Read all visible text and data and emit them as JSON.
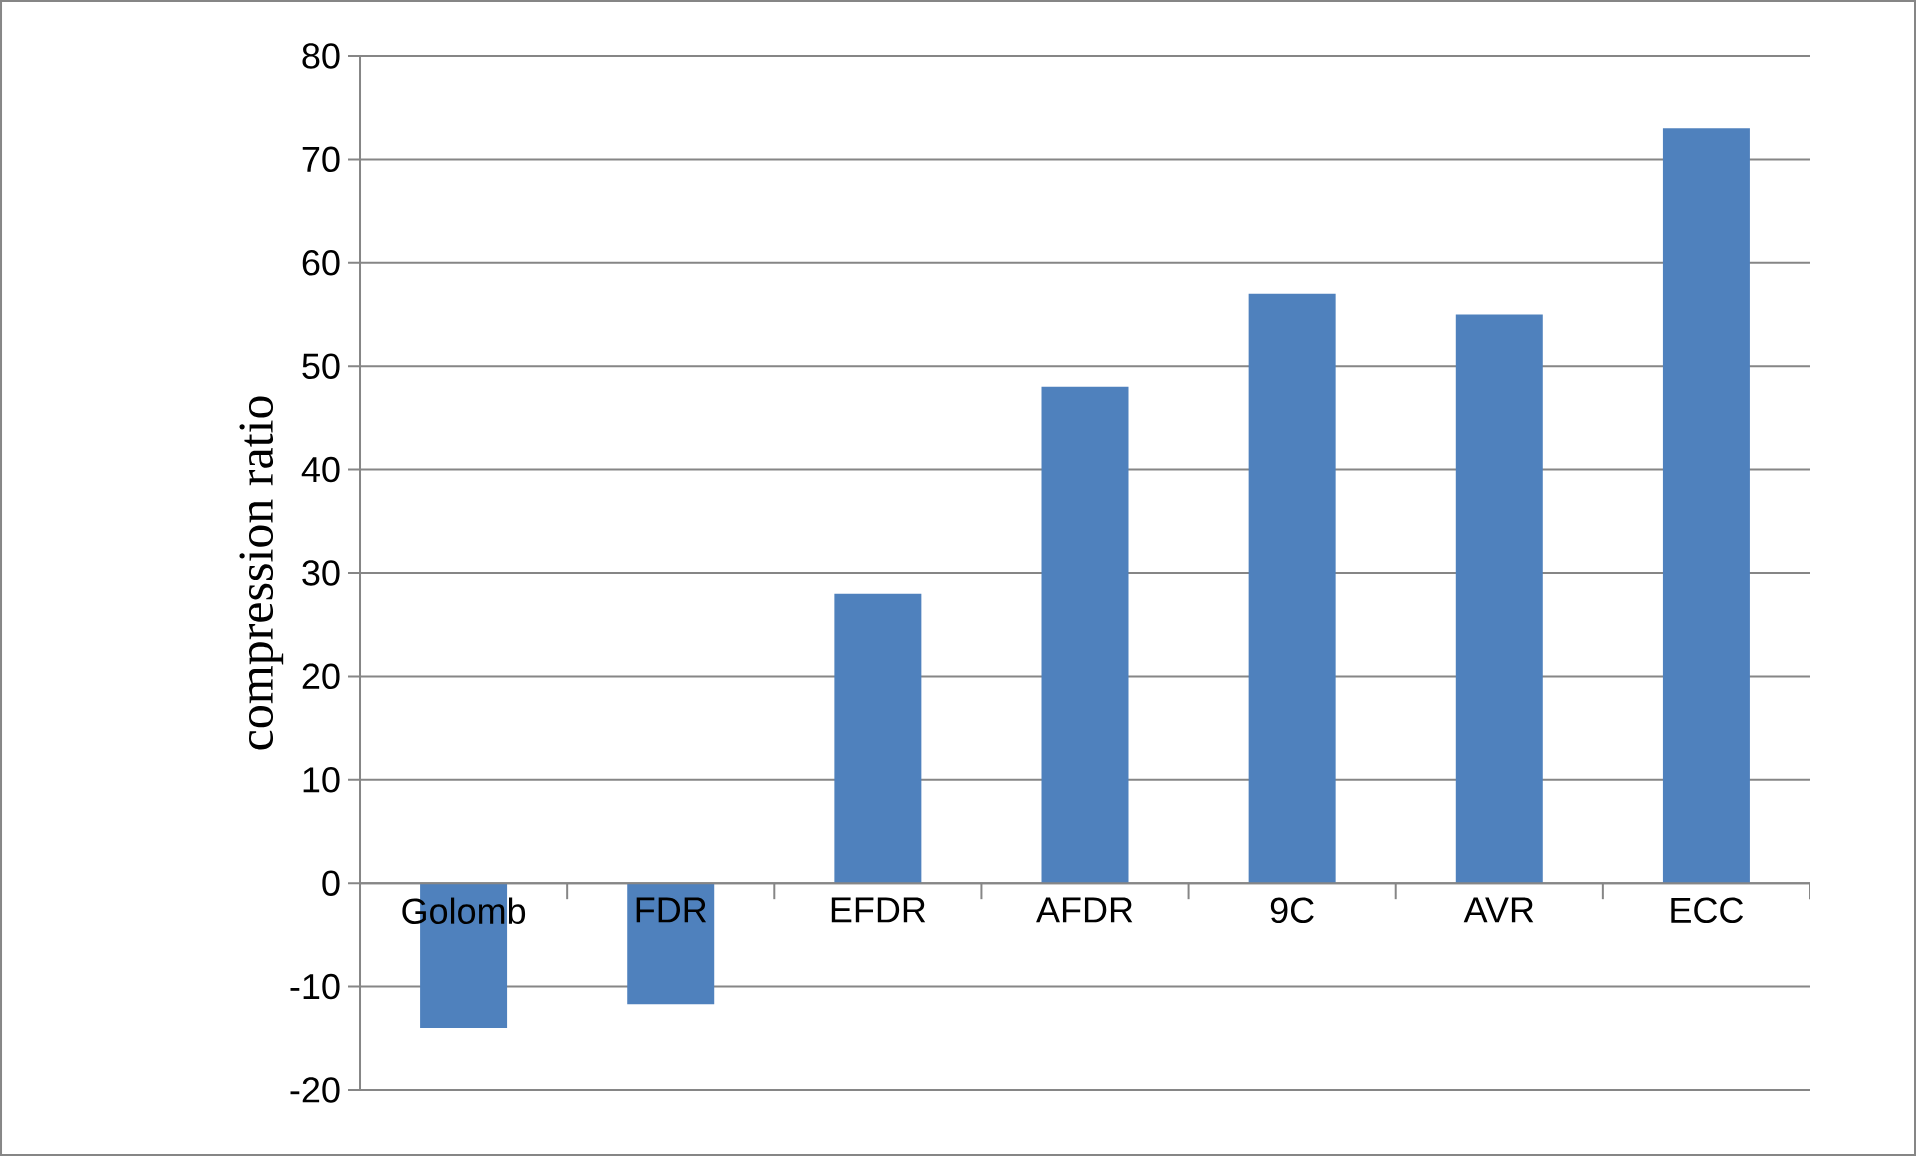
{
  "chart_data": {
    "type": "bar",
    "ylabel": "compression ratio",
    "categories": [
      "Golomb",
      "FDR",
      "EFDR",
      "AFDR",
      "9C",
      "AVR",
      "ECC"
    ],
    "values": [
      -14,
      -11.7,
      28,
      48,
      57,
      55,
      73
    ],
    "color": "#4f81bd",
    "ylim": [
      -20,
      80
    ],
    "yticks": [
      -20,
      -10,
      0,
      10,
      20,
      30,
      40,
      50,
      60,
      70,
      80
    ],
    "grid": "y"
  }
}
